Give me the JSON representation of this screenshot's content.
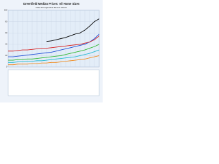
{
  "chart_data": {
    "type": "line",
    "title": "Greenfield Median Prices: All Home Sizes",
    "subtitle": "Data Through Most Recent Month",
    "categories": [
      null,
      null,
      null,
      null,
      null,
      null,
      null,
      null,
      null,
      null,
      null,
      null,
      null,
      null,
      null,
      null,
      null,
      null,
      null,
      null
    ],
    "series": [
      {
        "color": "#000000",
        "values": [
          null,
          null,
          null,
          null,
          null,
          null,
          null,
          null,
          45,
          46,
          48,
          50,
          52,
          55,
          58,
          60,
          65,
          72,
          80,
          85
        ]
      },
      {
        "color": "#1f4fd6",
        "values": [
          18,
          18,
          19,
          20,
          21,
          22,
          23,
          24,
          25,
          26,
          28,
          30,
          32,
          34,
          36,
          38,
          40,
          44,
          50,
          58
        ]
      },
      {
        "color": "#d62020",
        "values": [
          28,
          28,
          29,
          30,
          30,
          31,
          32,
          33,
          33,
          34,
          35,
          36,
          37,
          38,
          39,
          40,
          42,
          44,
          48,
          55
        ]
      },
      {
        "color": "#2eb82e",
        "values": [
          12,
          12,
          13,
          13,
          14,
          14,
          15,
          16,
          17,
          18,
          19,
          20,
          22,
          24,
          26,
          28,
          30,
          33,
          36,
          40
        ]
      },
      {
        "color": "#22b8d0",
        "values": [
          8,
          8,
          9,
          9,
          10,
          10,
          11,
          11,
          12,
          13,
          14,
          15,
          16,
          17,
          18,
          20,
          22,
          24,
          27,
          30
        ]
      },
      {
        "color": "#f08a1c",
        "values": [
          4,
          4,
          5,
          5,
          5,
          6,
          6,
          7,
          7,
          8,
          8,
          9,
          10,
          11,
          12,
          13,
          14,
          16,
          18,
          20
        ]
      }
    ],
    "ylim": [
      0,
      100
    ],
    "yticks": [
      0,
      20,
      40,
      60,
      80,
      100
    ],
    "grid": true
  }
}
